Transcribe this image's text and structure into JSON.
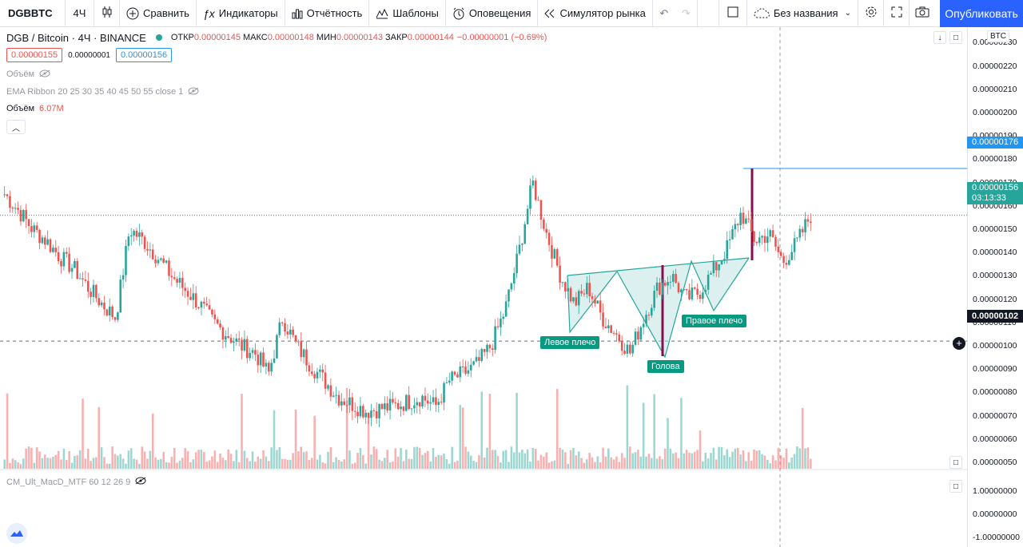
{
  "toolbar": {
    "symbol": "DGBBTC",
    "interval": "4Ч",
    "compare_label": "Сравнить",
    "indicators_label": "Индикаторы",
    "reports_label": "Отчётность",
    "templates_label": "Шаблоны",
    "alerts_label": "Оповещения",
    "replay_label": "Симулятор рынка",
    "layout_name": "Без названия",
    "publish_label": "Опубликовать"
  },
  "legend": {
    "title": "DGB / Bitcoin · 4Ч · BINANCE",
    "open_key": "ОТКР",
    "open_val": "0.00000145",
    "high_key": "МАКС",
    "high_val": "0.00000148",
    "low_key": "МИН",
    "low_val": "0.00000143",
    "close_key": "ЗАКР",
    "close_val": "0.00000144",
    "change": "−0.00000001 (−0.69%)",
    "bid": "0.00000155",
    "spread": "0.00000001",
    "ask": "0.00000156",
    "study_volume_hidden": "Объём",
    "study_ema": "EMA Ribbon 20 25 30 35 40 45 50 55 close 1",
    "volume_label": "Объём",
    "volume_value": "6.07M"
  },
  "macd_label": "CM_Ult_MacD_MTF 60 12 26 9",
  "currency_button": "BTC",
  "price_axis": {
    "ticks": [
      "0.00000230",
      "0.00000220",
      "0.00000210",
      "0.00000200",
      "0.00000190",
      "0.00000180",
      "0.00000170",
      "0.00000160",
      "0.00000150",
      "0.00000140",
      "0.00000130",
      "0.00000120",
      "0.00000110",
      "0.00000100",
      "0.00000090",
      "0.00000080",
      "0.00000070",
      "0.00000060",
      "0.00000050"
    ],
    "macd_ticks": [
      "1.00000000",
      "0.00000000",
      "-1.00000000"
    ],
    "tag_target": "0.00000176",
    "tag_last": "0.00000156",
    "tag_countdown": "03:13:33",
    "tag_crosshair": "0.00000102"
  },
  "pattern": {
    "left_shoulder": "Левое плечо",
    "head": "Голова",
    "right_shoulder": "Правое плечо"
  },
  "colors": {
    "up": "#26a69a",
    "down": "#ef5350",
    "pattern_fill": "#b2dfdb",
    "pattern_line": "#26a69a",
    "target_line": "#2196f3",
    "marker": "#880e4f",
    "publish": "#2962ff"
  },
  "chart_data": {
    "type": "candlestick",
    "symbol": "DGB / Bitcoin",
    "interval": "4Ч",
    "exchange": "BINANCE",
    "ylim": [
      4.8e-07,
      2.33e-06
    ],
    "close_series": [
      1.65e-06,
      1.58e-06,
      1.5e-06,
      1.45e-06,
      1.38e-06,
      1.33e-06,
      1.25e-06,
      1.18e-06,
      1.12e-06,
      1.5e-06,
      1.45e-06,
      1.38e-06,
      1.3e-06,
      1.24e-06,
      1.18e-06,
      1.1e-06,
      1.05e-06,
      1e-06,
      9.7e-07,
      8.8e-07,
      1.12e-06,
      1e-06,
      9.2e-07,
      8.5e-07,
      7.8e-07,
      7.5e-07,
      7.2e-07,
      7.3e-07,
      7.4e-07,
      7.6e-07,
      7.8e-07,
      7.4e-07,
      8.5e-07,
      8.8e-07,
      9.2e-07,
      1e-06,
      1.15e-06,
      1.4e-06,
      1.7e-06,
      1.48e-06,
      1.3e-06,
      1.18e-06,
      1.25e-06,
      1.12e-06,
      1.05e-06,
      9.7e-07,
      1.12e-06,
      1.25e-06,
      1.3e-06,
      1.2e-06,
      1.23e-06,
      1.32e-06,
      1.42e-06,
      1.57e-06,
      1.45e-06,
      1.48e-06,
      1.36e-06,
      1.44e-06,
      1.56e-06
    ],
    "annotations": {
      "target": 1.76e-06,
      "last": 1.56e-06,
      "crosshair": 1.02e-06
    }
  }
}
